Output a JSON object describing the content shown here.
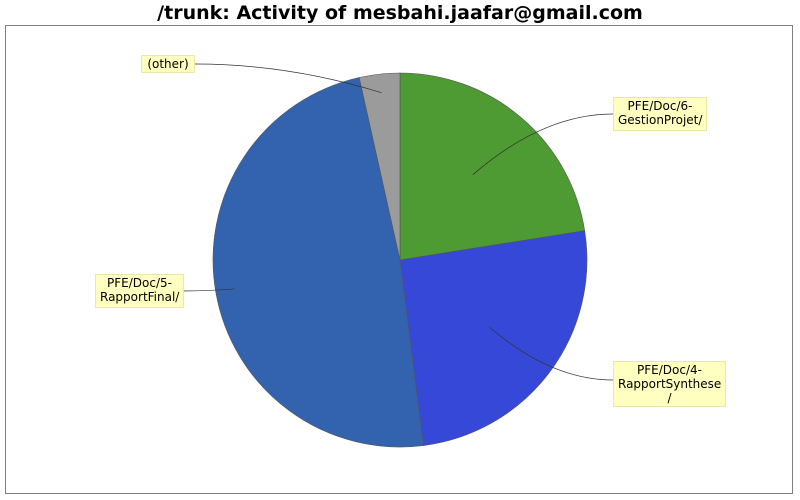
{
  "chart_data": {
    "type": "pie",
    "title": "/trunk: Activity of mesbahi.jaafar@gmail.com",
    "slices": [
      {
        "label": "PFE/Doc/6-\nGestionProjet/",
        "value": 22.5,
        "color": "#4e9a33"
      },
      {
        "label": "PFE/Doc/4-\nRapportSynthese\n/",
        "value": 25.5,
        "color": "#3548d7"
      },
      {
        "label": "PFE/Doc/5-\nRapportFinal/",
        "value": 48.5,
        "color": "#3363ae"
      },
      {
        "label": "(other)",
        "value": 3.5,
        "color": "#9b9b9b"
      }
    ],
    "legend": "none"
  }
}
